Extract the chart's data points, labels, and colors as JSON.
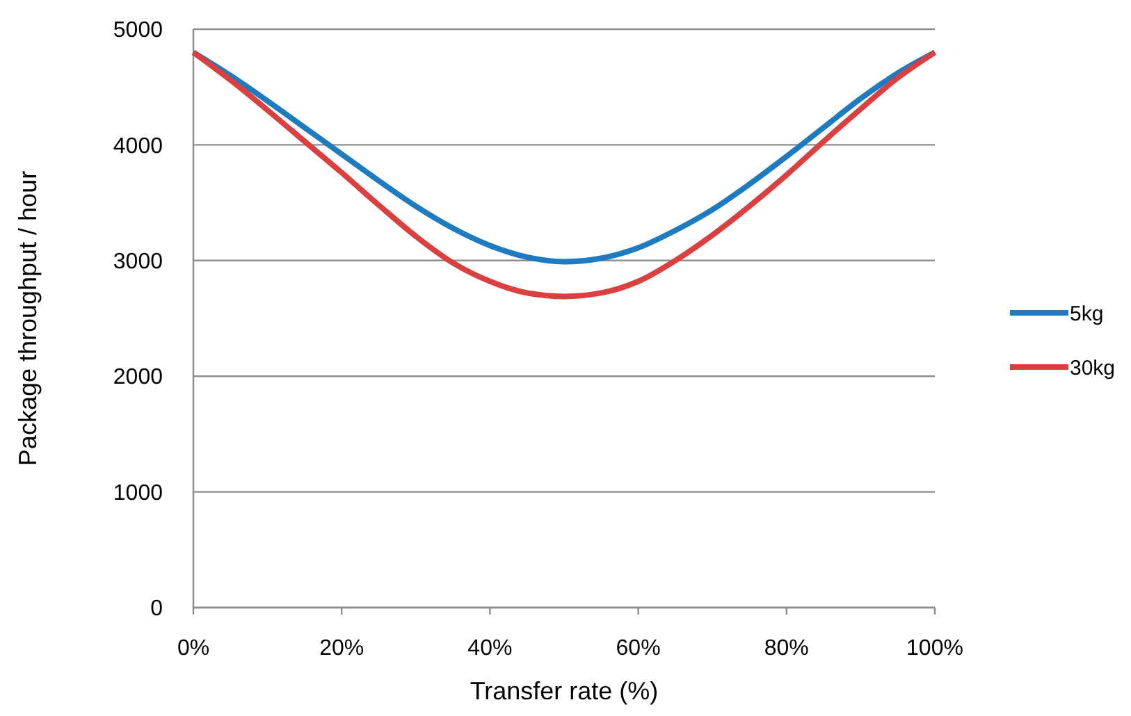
{
  "chart_data": {
    "type": "line",
    "xlabel": "Transfer rate (%)",
    "ylabel": "Package throughput  / hour",
    "x": [
      0,
      5,
      10,
      15,
      20,
      25,
      30,
      35,
      40,
      45,
      50,
      55,
      60,
      65,
      70,
      75,
      80,
      85,
      90,
      95,
      100
    ],
    "xlim": [
      0,
      100
    ],
    "xticks": [
      {
        "value": 0,
        "label": "0%"
      },
      {
        "value": 20,
        "label": "20%"
      },
      {
        "value": 40,
        "label": "40%"
      },
      {
        "value": 60,
        "label": "60%"
      },
      {
        "value": 80,
        "label": "80%"
      },
      {
        "value": 100,
        "label": "100%"
      }
    ],
    "ylim": [
      0,
      5000
    ],
    "yticks": [
      0,
      1000,
      2000,
      3000,
      4000,
      5000
    ],
    "grid": "y",
    "legend": "right",
    "marker": "none",
    "line_style": "solid",
    "series": [
      {
        "name": "5kg",
        "color": "#1f7bbf",
        "values": [
          4800,
          4600,
          4380,
          4150,
          3920,
          3690,
          3470,
          3280,
          3130,
          3030,
          2990,
          3020,
          3110,
          3260,
          3440,
          3660,
          3900,
          4150,
          4400,
          4620,
          4800
        ]
      },
      {
        "name": "30kg",
        "color": "#d9403f",
        "values": [
          4800,
          4560,
          4300,
          4030,
          3760,
          3480,
          3210,
          2980,
          2820,
          2720,
          2690,
          2720,
          2820,
          3000,
          3220,
          3470,
          3740,
          4030,
          4310,
          4580,
          4800
        ]
      }
    ]
  }
}
